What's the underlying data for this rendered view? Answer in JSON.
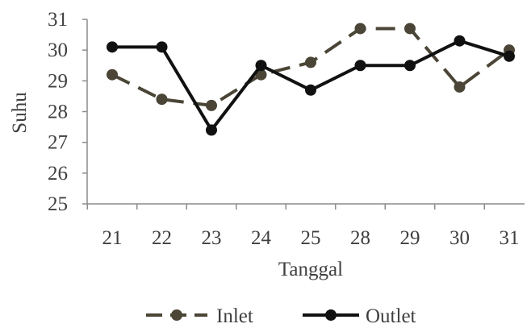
{
  "chart_data": {
    "type": "line",
    "title": "",
    "xlabel": "Tanggal",
    "ylabel": "Suhu",
    "categories": [
      "21",
      "22",
      "23",
      "24",
      "25",
      "28",
      "29",
      "30",
      "31"
    ],
    "ylim": [
      25,
      31
    ],
    "yticks": [
      "25",
      "26",
      "27",
      "28",
      "29",
      "30",
      "31"
    ],
    "grid": false,
    "legend_position": "bottom",
    "series": [
      {
        "name": "Inlet",
        "values": [
          29.2,
          28.4,
          28.2,
          29.2,
          29.6,
          30.7,
          30.7,
          28.8,
          30.0
        ],
        "color": "#4a4536",
        "dash": "dashed"
      },
      {
        "name": "Outlet",
        "values": [
          30.1,
          30.1,
          27.4,
          29.5,
          28.7,
          29.5,
          29.5,
          30.3,
          29.8
        ],
        "color": "#111111",
        "dash": "solid"
      }
    ]
  }
}
